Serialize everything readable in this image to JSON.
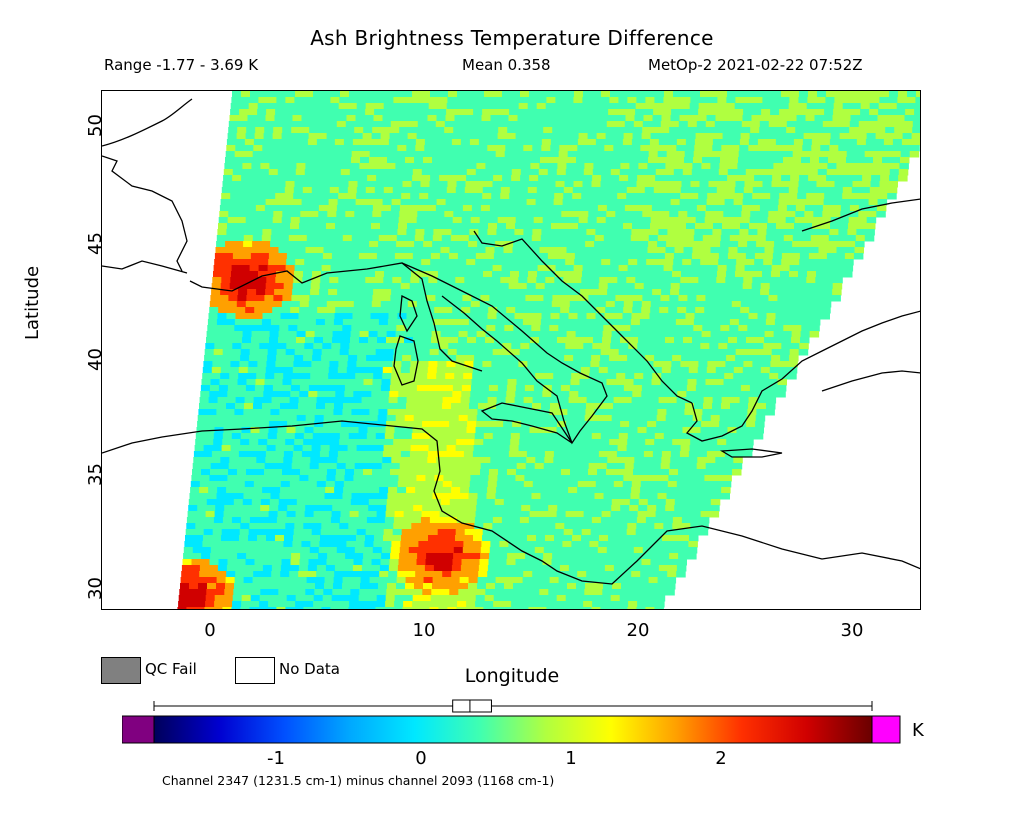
{
  "header": {
    "title": "Ash Brightness Temperature Difference",
    "range": "Range -1.77 - 3.69 K",
    "mean": "Mean 0.358",
    "satellite": "MetOp-2 2021-02-22 07:52Z"
  },
  "chart_data": {
    "type": "heatmap",
    "title": "Ash Brightness Temperature Difference",
    "xlabel": "Longitude",
    "ylabel": "Latitude",
    "xlim": [
      -5,
      33
    ],
    "ylim": [
      29,
      51.5
    ],
    "x_ticks": [
      "0",
      "10",
      "20",
      "30"
    ],
    "y_ticks": [
      "30",
      "35",
      "40",
      "45",
      "50"
    ],
    "value_range_K": [
      -1.77,
      3.69
    ],
    "mean_K": 0.358,
    "colorbar": {
      "unit": "K",
      "ticks": [
        "-1",
        "0",
        "1",
        "2"
      ],
      "range": [
        -2.0,
        3.0
      ],
      "colors": [
        "#00005a",
        "#0000d0",
        "#0050ff",
        "#00a8ff",
        "#00e8ff",
        "#40ffb0",
        "#b0ff40",
        "#ffff00",
        "#ffa000",
        "#ff3000",
        "#d00000",
        "#6a0000"
      ],
      "below_color": "#800080",
      "above_color": "#ff00ff",
      "box_plot": {
        "min": -1.77,
        "q1": 0.08,
        "median": 0.2,
        "q3": 0.35,
        "max": 3.69
      }
    },
    "hot_regions": [
      {
        "lon": 10.5,
        "lat": 31.5,
        "value_K": 2.6
      },
      {
        "lon": 1.5,
        "lat": 43.5,
        "value_K": 2.8
      },
      {
        "lon": -1.2,
        "lat": 29.8,
        "value_K": 2.7
      }
    ]
  },
  "legend": {
    "qc_fail_label": "QC Fail",
    "qc_fail_color": "#808080",
    "no_data_label": "No Data",
    "no_data_color": "#ffffff"
  },
  "footer": {
    "channel_note": "Channel 2347 (1231.5 cm-1) minus channel 2093 (1168 cm-1)"
  }
}
